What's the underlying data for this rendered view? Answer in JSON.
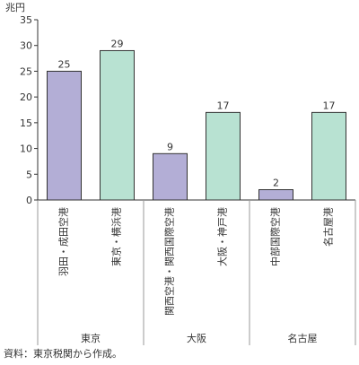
{
  "chart_data": {
    "type": "bar",
    "unit_label": "兆円",
    "categories": [
      "羽田・成田空港",
      "東京・横浜港",
      "関西空港・関西国際空港",
      "大阪・神戸港",
      "中部国際空港",
      "名古屋港"
    ],
    "values": [
      25,
      29,
      9,
      17,
      2,
      17
    ],
    "value_labels": [
      "25",
      "29",
      "9",
      "17",
      "2",
      "17"
    ],
    "groups": [
      {
        "name": "東京",
        "categories": [
          "羽田・成田空港",
          "東京・横浜港"
        ]
      },
      {
        "name": "大阪",
        "categories": [
          "関西空港・関西国際空港",
          "大阪・神戸港"
        ]
      },
      {
        "name": "名古屋",
        "categories": [
          "中部国際空港",
          "名古屋港"
        ]
      }
    ],
    "y_ticks": [
      0,
      5,
      10,
      15,
      20,
      25,
      30,
      35
    ],
    "ylim": [
      0,
      35
    ],
    "grid": false,
    "colors": {
      "airport": "#b3aed6",
      "port": "#b8e2d2",
      "edge": "#333333"
    },
    "bar_kind": [
      "airport",
      "port",
      "airport",
      "port",
      "airport",
      "port"
    ]
  },
  "source_note": "資料：東京税関から作成。"
}
